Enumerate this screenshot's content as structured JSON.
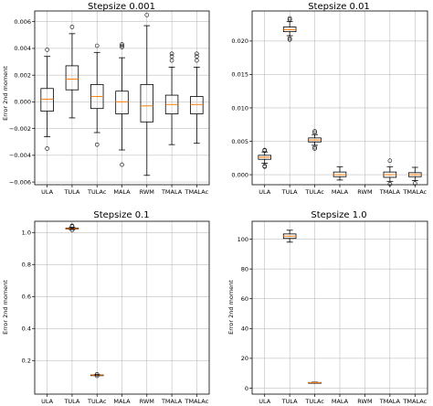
{
  "chart_data": [
    {
      "type": "box",
      "title": "Stepsize 0.001",
      "ylabel": "Error 2nd moment",
      "categories": [
        "ULA",
        "TULA",
        "TULAc",
        "MALA",
        "RWM",
        "TMALA",
        "TMALAc"
      ],
      "ylim": [
        -0.0062,
        0.0068
      ],
      "yticks": [
        -0.006,
        -0.004,
        -0.002,
        0.0,
        0.002,
        0.004,
        0.006
      ],
      "yticklabels": [
        "−0.006",
        "−0.004",
        "−0.002",
        "0.000",
        "0.002",
        "0.004",
        "0.006"
      ],
      "grid": true,
      "boxes": [
        {
          "whislo": -0.0026,
          "q1": -0.0007,
          "med": 0.0002,
          "q3": 0.001,
          "whishi": 0.0034,
          "fliers": [
            0.0039,
            -0.0035
          ]
        },
        {
          "whislo": -0.0012,
          "q1": 0.0009,
          "med": 0.0017,
          "q3": 0.0027,
          "whishi": 0.0051,
          "fliers": [
            0.0056
          ]
        },
        {
          "whislo": -0.0023,
          "q1": -0.0005,
          "med": 0.0004,
          "q3": 0.0013,
          "whishi": 0.0037,
          "fliers": [
            0.0042,
            -0.0032
          ]
        },
        {
          "whislo": -0.0036,
          "q1": -0.0009,
          "med": 0.0,
          "q3": 0.0008,
          "whishi": 0.0033,
          "fliers": [
            0.0043,
            0.0042,
            0.0041,
            -0.0047
          ]
        },
        {
          "whislo": -0.0055,
          "q1": -0.0015,
          "med": -0.0003,
          "q3": 0.0013,
          "whishi": 0.0057,
          "fliers": [
            0.0065
          ]
        },
        {
          "whislo": -0.0032,
          "q1": -0.0009,
          "med": -0.0002,
          "q3": 0.0005,
          "whishi": 0.0026,
          "fliers": [
            0.0036,
            0.0034,
            0.0031
          ]
        },
        {
          "whislo": -0.0031,
          "q1": -0.0009,
          "med": -0.0002,
          "q3": 0.0004,
          "whishi": 0.0026,
          "fliers": [
            0.0036,
            0.0034,
            0.0031
          ]
        }
      ]
    },
    {
      "type": "box",
      "title": "Stepsize 0.01",
      "ylabel": "",
      "categories": [
        "ULA",
        "TULA",
        "TULAc",
        "MALA",
        "RWM",
        "TMALA",
        "TMALAc"
      ],
      "ylim": [
        -0.0015,
        0.0245
      ],
      "yticks": [
        0.0,
        0.005,
        0.01,
        0.015,
        0.02
      ],
      "yticklabels": [
        "0.000",
        "0.005",
        "0.010",
        "0.015",
        "0.020"
      ],
      "grid": true,
      "boxes": [
        {
          "whislo": 0.0017,
          "q1": 0.0023,
          "med": 0.0026,
          "q3": 0.0029,
          "whishi": 0.0034,
          "fliers": [
            0.0036,
            0.0037,
            0.0013,
            0.0012
          ]
        },
        {
          "whislo": 0.0208,
          "q1": 0.0214,
          "med": 0.0217,
          "q3": 0.0221,
          "whishi": 0.0229,
          "fliers": [
            0.0232,
            0.0234,
            0.0204,
            0.0202
          ]
        },
        {
          "whislo": 0.0044,
          "q1": 0.0049,
          "med": 0.0052,
          "q3": 0.0055,
          "whishi": 0.006,
          "fliers": [
            0.0063,
            0.0065,
            0.0041,
            0.0039
          ]
        },
        {
          "whislo": -0.0008,
          "q1": -0.0003,
          "med": 0.0,
          "q3": 0.0004,
          "whishi": 0.0012,
          "fliers": []
        },
        null,
        {
          "whislo": -0.001,
          "q1": -0.0004,
          "med": 0.0,
          "q3": 0.0004,
          "whishi": 0.0012,
          "fliers": [
            0.0021,
            -0.0014
          ]
        },
        {
          "whislo": -0.0009,
          "q1": -0.0003,
          "med": 0.0,
          "q3": 0.0003,
          "whishi": 0.0011,
          "fliers": [
            -0.0013
          ]
        }
      ]
    },
    {
      "type": "box",
      "title": "Stepsize 0.1",
      "ylabel": "Error 2nd moment",
      "categories": [
        "ULA",
        "TULA",
        "TULAc",
        "MALA",
        "RWM",
        "TMALA",
        "TMALAc"
      ],
      "ylim": [
        -0.01,
        1.07
      ],
      "yticks": [
        0.2,
        0.4,
        0.6,
        0.8,
        1.0
      ],
      "yticklabels": [
        "0.2",
        "0.4",
        "0.6",
        "0.8",
        "1.0"
      ],
      "grid": true,
      "boxes": [
        null,
        {
          "whislo": 1.018,
          "q1": 1.022,
          "med": 1.025,
          "q3": 1.028,
          "whishi": 1.032,
          "fliers": [
            1.038,
            1.042,
            1.015
          ]
        },
        {
          "whislo": 0.106,
          "q1": 0.108,
          "med": 0.109,
          "q3": 0.11,
          "whishi": 0.112,
          "fliers": [
            0.114,
            0.104
          ]
        },
        null,
        null,
        null,
        null
      ]
    },
    {
      "type": "box",
      "title": "Stepsize 1.0",
      "ylabel": "Error 2nd moment",
      "categories": [
        "ULA",
        "TULA",
        "TULAc",
        "MALA",
        "RWM",
        "TMALA",
        "TMALAc"
      ],
      "ylim": [
        -4,
        112
      ],
      "yticks": [
        0,
        20,
        40,
        60,
        80,
        100
      ],
      "yticklabels": [
        "0",
        "20",
        "40",
        "60",
        "80",
        "100"
      ],
      "grid": true,
      "boxes": [
        null,
        {
          "whislo": 98,
          "q1": 100.5,
          "med": 102,
          "q3": 103.5,
          "whishi": 106,
          "fliers": []
        },
        {
          "whislo": 3.4,
          "q1": 3.6,
          "med": 3.7,
          "q3": 3.8,
          "whishi": 4.0,
          "fliers": []
        },
        null,
        null,
        null,
        null
      ]
    }
  ]
}
